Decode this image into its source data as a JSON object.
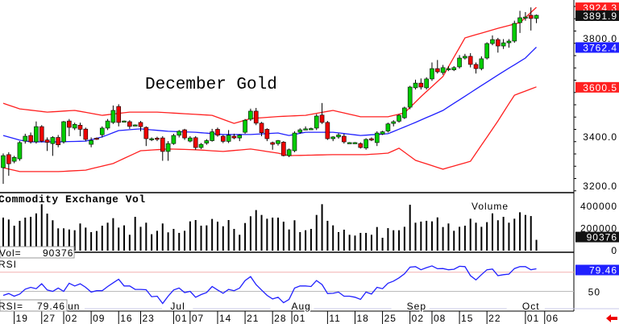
{
  "chart_data": [
    {
      "type": "candlestick",
      "title": "December Gold",
      "ylim": [
        3170,
        3935
      ],
      "y_ticks": [
        "3800.0",
        "3400.0",
        "3200.0"
      ],
      "y_tick_values": [
        3800,
        3400,
        3200
      ],
      "last_labels": [
        {
          "text": "3924.3",
          "value": 3924.3,
          "color": "#ff2020",
          "series": "upper band"
        },
        {
          "text": "3891.9",
          "value": 3891.9,
          "color": "#111111",
          "series": "last close"
        },
        {
          "text": "3762.4",
          "value": 3762.4,
          "color": "#2020ff",
          "series": "middle band"
        },
        {
          "text": "3600.5",
          "value": 3600.5,
          "color": "#ff2020",
          "series": "lower band"
        }
      ],
      "ohlc": [
        [
          3272,
          3330,
          3206,
          3321
        ],
        [
          3325,
          3335,
          3239,
          3288
        ],
        [
          3298,
          3320,
          3290,
          3314
        ],
        [
          3308,
          3380,
          3300,
          3374
        ],
        [
          3380,
          3410,
          3370,
          3400
        ],
        [
          3403,
          3415,
          3370,
          3377
        ],
        [
          3377,
          3460,
          3370,
          3439
        ],
        [
          3439,
          3445,
          3375,
          3380
        ],
        [
          3385,
          3395,
          3340,
          3375
        ],
        [
          3370,
          3400,
          3320,
          3395
        ],
        [
          3395,
          3405,
          3355,
          3365
        ],
        [
          3377,
          3462,
          3370,
          3459
        ],
        [
          3462,
          3470,
          3400,
          3436
        ],
        [
          3433,
          3455,
          3425,
          3448
        ],
        [
          3445,
          3455,
          3400,
          3428
        ],
        [
          3429,
          3435,
          3380,
          3387
        ],
        [
          3367,
          3395,
          3355,
          3383
        ],
        [
          3392,
          3395,
          3385,
          3390
        ],
        [
          3406,
          3440,
          3395,
          3433
        ],
        [
          3433,
          3470,
          3425,
          3462
        ],
        [
          3456,
          3525,
          3450,
          3505
        ],
        [
          3521,
          3530,
          3440,
          3456
        ],
        [
          3462,
          3464,
          3460,
          3462
        ],
        [
          3459,
          3465,
          3430,
          3440
        ],
        [
          3446,
          3448,
          3444,
          3446
        ],
        [
          3456,
          3462,
          3420,
          3439
        ],
        [
          3436,
          3440,
          3360,
          3390
        ],
        [
          3385,
          3395,
          3380,
          3390
        ],
        [
          3392,
          3398,
          3380,
          3388
        ],
        [
          3393,
          3400,
          3300,
          3338
        ],
        [
          3338,
          3380,
          3300,
          3370
        ],
        [
          3370,
          3410,
          3365,
          3403
        ],
        [
          3404,
          3425,
          3395,
          3420
        ],
        [
          3426,
          3430,
          3385,
          3393
        ],
        [
          3380,
          3400,
          3375,
          3393
        ],
        [
          3394,
          3400,
          3345,
          3354
        ],
        [
          3354,
          3372,
          3348,
          3367
        ],
        [
          3372,
          3388,
          3365,
          3382
        ],
        [
          3382,
          3430,
          3378,
          3418
        ],
        [
          3428,
          3435,
          3398,
          3404
        ],
        [
          3400,
          3405,
          3372,
          3379
        ],
        [
          3379,
          3425,
          3372,
          3404
        ],
        [
          3400,
          3410,
          3388,
          3393
        ],
        [
          3393,
          3408,
          3380,
          3404
        ],
        [
          3416,
          3470,
          3410,
          3465
        ],
        [
          3469,
          3512,
          3462,
          3502
        ],
        [
          3502,
          3515,
          3445,
          3453
        ],
        [
          3453,
          3458,
          3400,
          3414
        ],
        [
          3428,
          3432,
          3380,
          3390
        ],
        [
          3374,
          3378,
          3345,
          3367
        ],
        [
          3370,
          3385,
          3362,
          3382
        ],
        [
          3376,
          3380,
          3318,
          3321
        ],
        [
          3321,
          3350,
          3315,
          3345
        ],
        [
          3341,
          3420,
          3335,
          3413
        ],
        [
          3416,
          3432,
          3410,
          3426
        ],
        [
          3430,
          3440,
          3425,
          3430
        ],
        [
          3431,
          3435,
          3428,
          3431
        ],
        [
          3433,
          3490,
          3425,
          3482
        ],
        [
          3486,
          3535,
          3450,
          3456
        ],
        [
          3456,
          3462,
          3385,
          3390
        ],
        [
          3390,
          3400,
          3380,
          3397
        ],
        [
          3397,
          3412,
          3390,
          3405
        ],
        [
          3400,
          3410,
          3370,
          3377
        ],
        [
          3374,
          3376,
          3372,
          3374
        ],
        [
          3374,
          3376,
          3372,
          3374
        ],
        [
          3370,
          3375,
          3350,
          3354
        ],
        [
          3352,
          3392,
          3345,
          3387
        ],
        [
          3390,
          3395,
          3380,
          3384
        ],
        [
          3374,
          3420,
          3360,
          3413
        ],
        [
          3409,
          3422,
          3405,
          3418
        ],
        [
          3421,
          3455,
          3415,
          3450
        ],
        [
          3452,
          3465,
          3440,
          3459
        ],
        [
          3461,
          3490,
          3455,
          3485
        ],
        [
          3475,
          3520,
          3470,
          3515
        ],
        [
          3518,
          3605,
          3510,
          3600
        ],
        [
          3597,
          3630,
          3590,
          3616
        ],
        [
          3616,
          3635,
          3590,
          3600
        ],
        [
          3597,
          3640,
          3590,
          3633
        ],
        [
          3633,
          3700,
          3625,
          3675
        ],
        [
          3675,
          3710,
          3655,
          3662
        ],
        [
          3659,
          3690,
          3650,
          3679
        ],
        [
          3675,
          3685,
          3665,
          3675
        ],
        [
          3670,
          3685,
          3665,
          3679
        ],
        [
          3682,
          3730,
          3675,
          3718
        ],
        [
          3718,
          3735,
          3712,
          3725
        ],
        [
          3725,
          3738,
          3680,
          3692
        ],
        [
          3692,
          3700,
          3655,
          3675
        ],
        [
          3675,
          3725,
          3668,
          3715
        ],
        [
          3718,
          3782,
          3712,
          3777
        ],
        [
          3777,
          3810,
          3770,
          3793
        ],
        [
          3793,
          3800,
          3740,
          3767
        ],
        [
          3767,
          3795,
          3755,
          3780
        ],
        [
          3780,
          3795,
          3760,
          3787
        ],
        [
          3787,
          3870,
          3780,
          3859
        ],
        [
          3862,
          3910,
          3820,
          3882
        ],
        [
          3882,
          3905,
          3870,
          3885
        ],
        [
          3892,
          3924,
          3830,
          3879
        ],
        [
          3879,
          3895,
          3860,
          3891.9
        ]
      ],
      "bollinger": {
        "upper": [
          [
            0,
            3534
          ],
          [
            3,
            3511
          ],
          [
            8,
            3498
          ],
          [
            13,
            3505
          ],
          [
            18,
            3485
          ],
          [
            23,
            3498
          ],
          [
            28,
            3498
          ],
          [
            38,
            3485
          ],
          [
            42,
            3452
          ],
          [
            45,
            3472
          ],
          [
            50,
            3480
          ],
          [
            55,
            3485
          ],
          [
            60,
            3505
          ],
          [
            65,
            3479
          ],
          [
            70,
            3479
          ],
          [
            73,
            3495
          ],
          [
            76,
            3561
          ],
          [
            80,
            3643
          ],
          [
            84,
            3800
          ],
          [
            90,
            3839
          ],
          [
            94,
            3862
          ],
          [
            97,
            3924.3
          ]
        ],
        "middle": [
          [
            0,
            3403
          ],
          [
            3,
            3384
          ],
          [
            5,
            3377
          ],
          [
            10,
            3377
          ],
          [
            15,
            3380
          ],
          [
            18,
            3397
          ],
          [
            21,
            3423
          ],
          [
            25,
            3430
          ],
          [
            30,
            3420
          ],
          [
            35,
            3416
          ],
          [
            40,
            3407
          ],
          [
            45,
            3407
          ],
          [
            50,
            3413
          ],
          [
            52,
            3403
          ],
          [
            55,
            3416
          ],
          [
            60,
            3416
          ],
          [
            65,
            3403
          ],
          [
            70,
            3410
          ],
          [
            75,
            3456
          ],
          [
            80,
            3505
          ],
          [
            85,
            3577
          ],
          [
            90,
            3649
          ],
          [
            95,
            3718
          ],
          [
            97,
            3762.4
          ]
        ],
        "lower": [
          [
            0,
            3272
          ],
          [
            3,
            3256
          ],
          [
            10,
            3256
          ],
          [
            15,
            3262
          ],
          [
            20,
            3289
          ],
          [
            25,
            3341
          ],
          [
            30,
            3348
          ],
          [
            35,
            3345
          ],
          [
            40,
            3338
          ],
          [
            45,
            3348
          ],
          [
            50,
            3331
          ],
          [
            52,
            3321
          ],
          [
            60,
            3325
          ],
          [
            66,
            3325
          ],
          [
            70,
            3331
          ],
          [
            72,
            3351
          ],
          [
            75,
            3302
          ],
          [
            80,
            3266
          ],
          [
            85,
            3298
          ],
          [
            90,
            3462
          ],
          [
            93,
            3567
          ],
          [
            97,
            3600.5
          ]
        ]
      },
      "colors": {
        "up": "#00cc00",
        "down": "#ee0000",
        "bands": "#ff2020",
        "middle": "#2020ff"
      }
    },
    {
      "type": "bar",
      "title": "Commodity Exchange Vol",
      "legend": "Volume",
      "readout_label": "Vol=",
      "readout_value": "90376",
      "ylim": [
        0,
        450000
      ],
      "y_ticks": [
        "400000",
        "200000",
        "0"
      ],
      "y_tick_values": [
        400000,
        200000,
        0
      ],
      "last_label": "90376",
      "values": [
        291000,
        274000,
        218000,
        262000,
        291000,
        298000,
        329000,
        412000,
        327000,
        267000,
        194000,
        194000,
        184000,
        177000,
        238000,
        201000,
        160000,
        170000,
        218000,
        245000,
        286000,
        201000,
        221000,
        136000,
        298000,
        208000,
        245000,
        141000,
        172000,
        238000,
        158000,
        189000,
        153000,
        172000,
        257000,
        269000,
        218000,
        221000,
        279000,
        254000,
        213000,
        269000,
        189000,
        136000,
        242000,
        303000,
        359000,
        315000,
        281000,
        291000,
        291000,
        254000,
        184000,
        267000,
        160000,
        177000,
        189000,
        315000,
        412000,
        262000,
        221000,
        160000,
        182000,
        136000,
        129000,
        153000,
        153000,
        136000,
        206000,
        109000,
        196000,
        177000,
        177000,
        208000,
        407000,
        245000,
        255000,
        262000,
        257000,
        293000,
        206000,
        238000,
        172000,
        208000,
        218000,
        281000,
        245000,
        208000,
        250000,
        329000,
        267000,
        298000,
        245000,
        281000,
        339000,
        315000,
        305000,
        90376
      ]
    },
    {
      "type": "line",
      "title": "RSI",
      "readout_label": "RSI=",
      "readout_value": "79.46",
      "y_ticks": [
        "50"
      ],
      "y_tick_values": [
        50
      ],
      "reference_line": 75,
      "last_label": "79.46",
      "values": [
        44.7,
        47.2,
        43.7,
        46.5,
        52.8,
        55.3,
        53.5,
        59.9,
        51.8,
        50,
        54.3,
        50,
        60.6,
        57.1,
        59.9,
        55.3,
        49,
        50.8,
        50.8,
        56.3,
        61.2,
        65.8,
        57.1,
        57.1,
        52.5,
        52.5,
        52.1,
        43.1,
        43.7,
        34.2,
        43.7,
        51.8,
        54.3,
        48.4,
        50,
        42.3,
        45.8,
        48.4,
        56.3,
        51.8,
        47.5,
        52.5,
        50.8,
        54.3,
        64.1,
        69.3,
        58.8,
        51.8,
        44.7,
        40.1,
        42.3,
        35.2,
        39.5,
        54.3,
        57.1,
        57.1,
        56.3,
        64.1,
        58.8,
        47.2,
        47.5,
        49,
        43.7,
        43.7,
        42.3,
        39.5,
        49,
        46.5,
        55.3,
        53.5,
        60.6,
        63.4,
        67.6,
        72.9,
        81.6,
        82.3,
        78.2,
        80.9,
        83.3,
        79.6,
        79.8,
        78.2,
        78.8,
        82.7,
        82.3,
        70.5,
        64.9,
        71.8,
        78.2,
        79.2,
        70.5,
        71.8,
        72.5,
        79.8,
        82.3,
        82.3,
        78.2,
        79.46
      ]
    }
  ],
  "x_axis": {
    "days": [
      {
        "label": "19",
        "index": 2
      },
      {
        "label": "27",
        "index": 7
      },
      {
        "label": "02",
        "index": 11
      },
      {
        "label": "09",
        "index": 16
      },
      {
        "label": "16",
        "index": 21
      },
      {
        "label": "23",
        "index": 25
      },
      {
        "label": "01",
        "index": 31
      },
      {
        "label": "07",
        "index": 34
      },
      {
        "label": "14",
        "index": 39
      },
      {
        "label": "21",
        "index": 44
      },
      {
        "label": "28",
        "index": 49
      },
      {
        "label": "01",
        "index": 52.5
      },
      {
        "label": "11",
        "index": 59
      },
      {
        "label": "18",
        "index": 64
      },
      {
        "label": "25",
        "index": 69
      },
      {
        "label": "02",
        "index": 74
      },
      {
        "label": "08",
        "index": 78
      },
      {
        "label": "15",
        "index": 83
      },
      {
        "label": "22",
        "index": 88
      },
      {
        "label": "01",
        "index": 95
      },
      {
        "label": "06",
        "index": 98.5
      }
    ],
    "months": [
      {
        "label": "Jun",
        "index": 11.3
      },
      {
        "label": "Jul",
        "index": 31
      },
      {
        "label": "Aug",
        "index": 53
      },
      {
        "label": "Sep",
        "index": 74
      },
      {
        "label": "Oct",
        "index": 95
      }
    ]
  }
}
